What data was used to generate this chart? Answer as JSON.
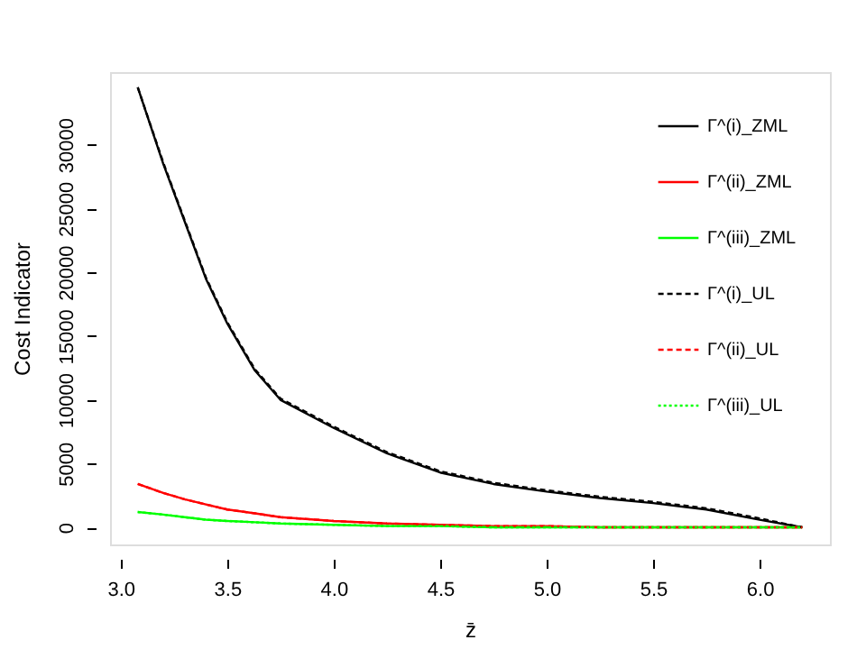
{
  "chart_data": {
    "type": "line",
    "xlabel": "z̄",
    "ylabel": "Cost Indicator",
    "x": [
      3.08,
      3.2,
      3.3,
      3.4,
      3.5,
      3.63,
      3.75,
      4.0,
      4.25,
      4.5,
      4.75,
      5.0,
      5.25,
      5.5,
      5.75,
      6.0,
      6.2
    ],
    "series": [
      {
        "name": "Γ^(i)_ZML",
        "color": "#000000",
        "line_style": "solid",
        "values": [
          34500,
          28500,
          24000,
          19500,
          16000,
          12300,
          10000,
          7800,
          5800,
          4300,
          3400,
          2800,
          2300,
          1900,
          1400,
          600,
          0
        ]
      },
      {
        "name": "Γ^(ii)_ZML",
        "color": "#ff0000",
        "line_style": "solid",
        "values": [
          3400,
          2700,
          2200,
          1800,
          1400,
          1100,
          800,
          500,
          300,
          200,
          100,
          100,
          0,
          0,
          0,
          0,
          0
        ]
      },
      {
        "name": "Γ^(iii)_ZML",
        "color": "#00ff00",
        "line_style": "solid",
        "values": [
          1200,
          1000,
          800,
          600,
          500,
          400,
          300,
          200,
          100,
          100,
          0,
          0,
          0,
          0,
          0,
          0,
          0
        ]
      },
      {
        "name": "Γ^(i)_UL",
        "color": "#000000",
        "line_style": "dashed",
        "values": [
          34500,
          28600,
          24100,
          19600,
          16100,
          12400,
          10100,
          7900,
          5900,
          4400,
          3500,
          2900,
          2400,
          2000,
          1500,
          700,
          0
        ]
      },
      {
        "name": "Γ^(ii)_UL",
        "color": "#ff0000",
        "line_style": "dashed",
        "values": [
          3400,
          2700,
          2200,
          1800,
          1400,
          1100,
          800,
          500,
          300,
          200,
          100,
          100,
          0,
          0,
          0,
          0,
          0
        ]
      },
      {
        "name": "Γ^(iii)_UL",
        "color": "#00ff00",
        "line_style": "dotted",
        "values": [
          1200,
          1000,
          800,
          600,
          500,
          400,
          300,
          200,
          100,
          100,
          0,
          0,
          0,
          0,
          0,
          0,
          0
        ]
      }
    ],
    "xlim": [
      2.95,
      6.33
    ],
    "ylim": [
      -1340,
      35700
    ],
    "xticks": [
      {
        "value": 3,
        "label": "3.0"
      },
      {
        "value": 3.5,
        "label": "3.5"
      },
      {
        "value": 4,
        "label": "4.0"
      },
      {
        "value": 4.5,
        "label": "4.5"
      },
      {
        "value": 5,
        "label": "5.0"
      },
      {
        "value": 5.5,
        "label": "5.5"
      },
      {
        "value": 6,
        "label": "6.0"
      }
    ],
    "yticks": [
      0,
      5000,
      10000,
      15000,
      20000,
      25000,
      30000
    ],
    "grid": false,
    "legend": "top right"
  }
}
